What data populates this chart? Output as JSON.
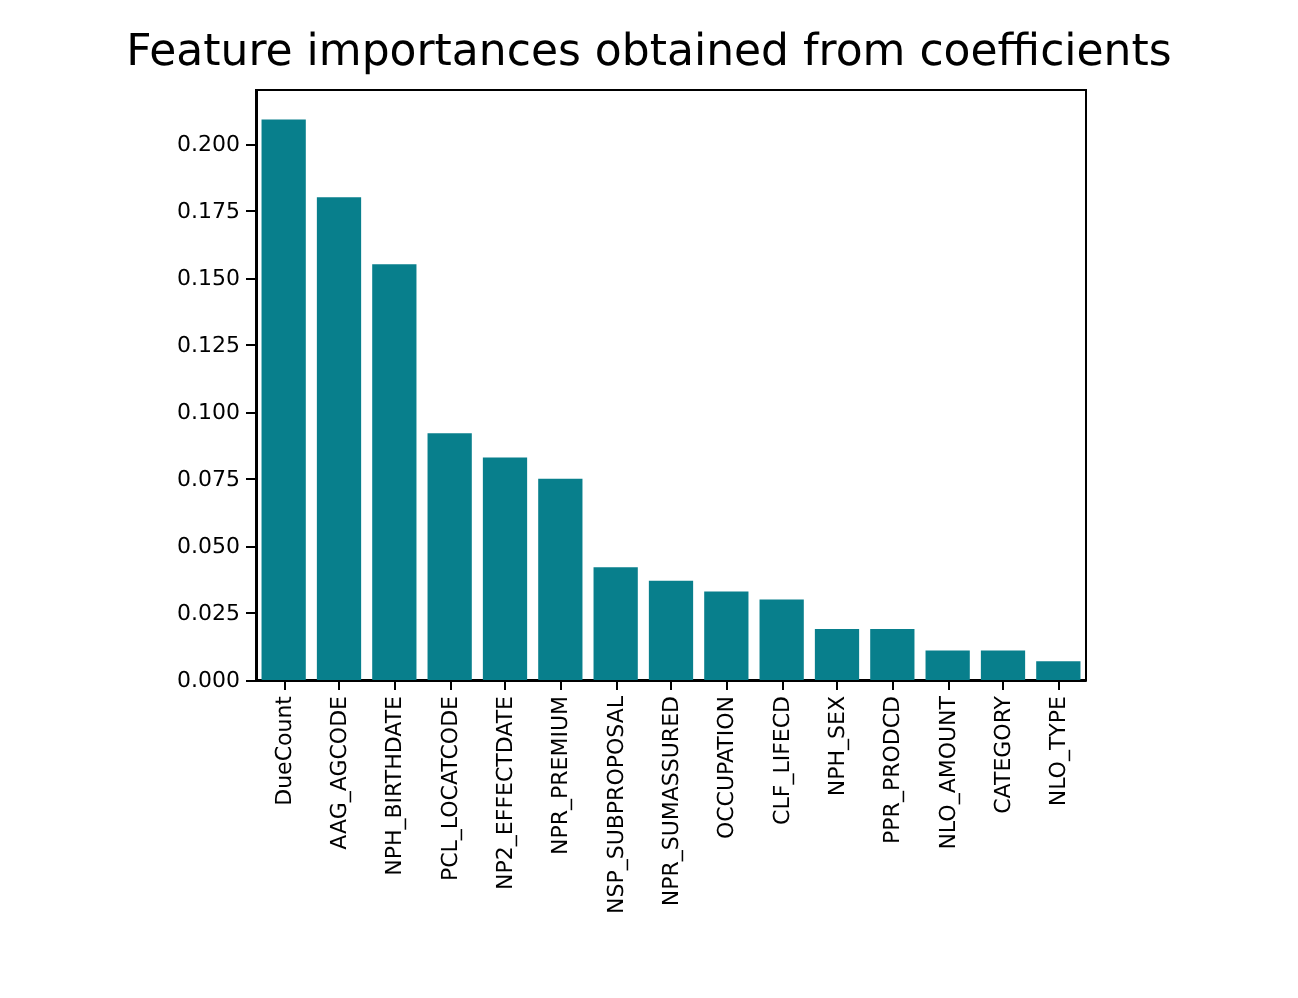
{
  "chart_data": {
    "type": "bar",
    "title": "Feature importances obtained from coefficients",
    "categories": [
      "DueCount",
      "AAG_AGCODE",
      "NPH_BIRTHDATE",
      "PCL_LOCATCODE",
      "NP2_EFFECTDATE",
      "NPR_PREMIUM",
      "NSP_SUBPROPOSAL",
      "NPR_SUMASSURED",
      "OCCUPATION",
      "CLF_LIFECD",
      "NPH_SEX",
      "PPR_PRODCD",
      "NLO_AMOUNT",
      "CATEGORY",
      "NLO_TYPE"
    ],
    "values": [
      0.209,
      0.18,
      0.155,
      0.092,
      0.083,
      0.075,
      0.042,
      0.037,
      0.033,
      0.03,
      0.019,
      0.019,
      0.011,
      0.011,
      0.007
    ],
    "color": "#087f8c",
    "ylim": [
      0,
      0.22
    ],
    "yticks": [
      {
        "value": 0,
        "label": "0.000"
      },
      {
        "value": 0.025,
        "label": "0.025"
      },
      {
        "value": 0.05,
        "label": "0.050"
      },
      {
        "value": 0.075,
        "label": "0.075"
      },
      {
        "value": 0.1,
        "label": "0.100"
      },
      {
        "value": 0.125,
        "label": "0.125"
      },
      {
        "value": 0.15,
        "label": "0.150"
      },
      {
        "value": 0.175,
        "label": "0.175"
      },
      {
        "value": 0.2,
        "label": "0.200"
      }
    ],
    "grid": false
  }
}
